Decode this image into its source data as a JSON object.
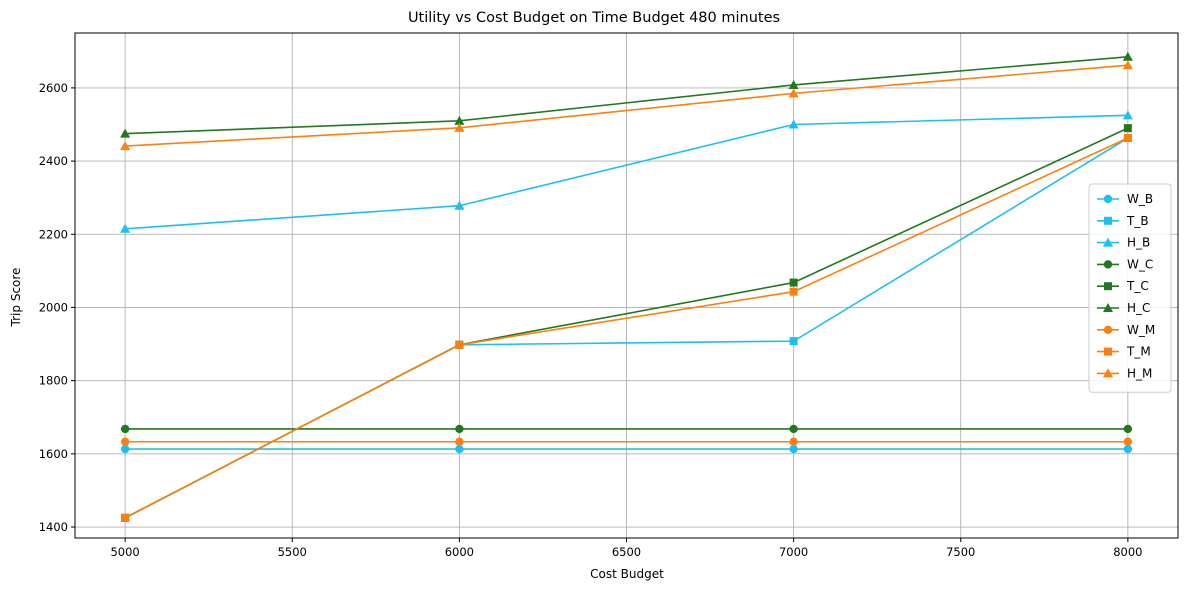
{
  "chart_data": {
    "type": "line",
    "title": "Utility vs Cost Budget on Time Budget 480 minutes",
    "xlabel": "Cost Budget",
    "ylabel": "Trip Score",
    "x": [
      5000,
      6000,
      7000,
      8000
    ],
    "xlim": [
      4850,
      8150
    ],
    "ylim": [
      1370,
      2750
    ],
    "xticks": [
      5000,
      5500,
      6000,
      6500,
      7000,
      7500,
      8000
    ],
    "yticks": [
      1400,
      1600,
      1800,
      2000,
      2200,
      2400,
      2600
    ],
    "grid": true,
    "legend_position": "right",
    "series": [
      {
        "name": "W_B",
        "color": "#1ebff0",
        "marker": "circle",
        "values": [
          1613,
          1613,
          1613,
          1613
        ]
      },
      {
        "name": "T_B",
        "color": "#1ebff0",
        "marker": "square",
        "values": [
          1425,
          1898,
          1908,
          2463
        ]
      },
      {
        "name": "H_B",
        "color": "#1ebff0",
        "marker": "triangle",
        "values": [
          2215,
          2278,
          2500,
          2525
        ]
      },
      {
        "name": "W_C",
        "color": "#217821",
        "marker": "circle",
        "values": [
          1668,
          1668,
          1668,
          1668
        ]
      },
      {
        "name": "T_C",
        "color": "#217821",
        "marker": "square",
        "values": [
          1425,
          1898,
          2068,
          2490
        ]
      },
      {
        "name": "H_C",
        "color": "#217821",
        "marker": "triangle",
        "values": [
          2475,
          2510,
          2608,
          2685
        ]
      },
      {
        "name": "W_M",
        "color": "#ff7f0e",
        "marker": "circle",
        "values": [
          1633,
          1633,
          1633,
          1633
        ]
      },
      {
        "name": "T_M",
        "color": "#ff7f0e",
        "marker": "square",
        "values": [
          1425,
          1898,
          2043,
          2463
        ]
      },
      {
        "name": "H_M",
        "color": "#ff7f0e",
        "marker": "triangle",
        "values": [
          2441,
          2491,
          2585,
          2662
        ]
      }
    ]
  }
}
